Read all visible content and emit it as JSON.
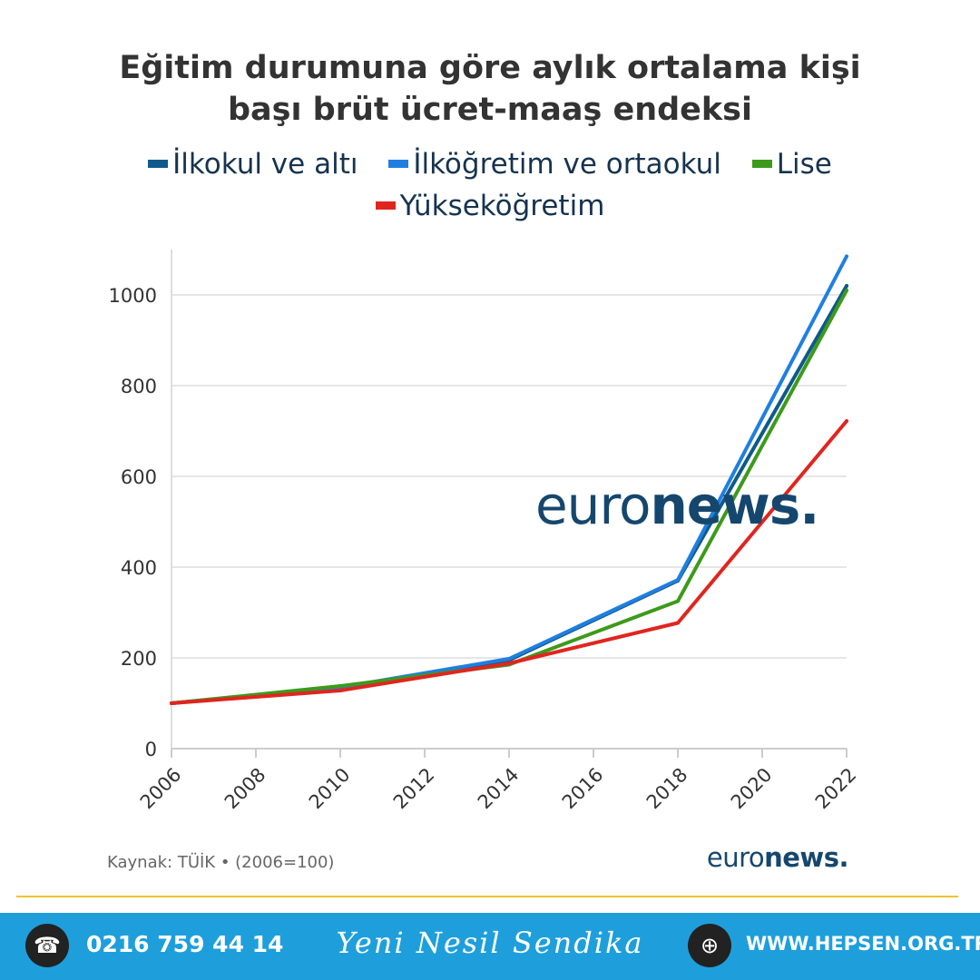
{
  "chart_data": {
    "type": "line",
    "title_line1": "Eğitim durumuna göre aylık ortalama kişi",
    "title_line2": "başı brüt ücret-maaş endeksi",
    "x": [
      2006,
      2010,
      2014,
      2018,
      2022
    ],
    "x_ticks": [
      "2006",
      "2008",
      "2010",
      "2012",
      "2014",
      "2016",
      "2018",
      "2020",
      "2022"
    ],
    "y_ticks": [
      "0",
      "200",
      "400",
      "600",
      "800",
      "1000"
    ],
    "xlim": [
      2006,
      2022
    ],
    "ylim": [
      0,
      1100
    ],
    "grid": true,
    "legend_position": "top",
    "series": [
      {
        "name": "İlkokul ve altı",
        "color": "#0e5a8a",
        "values": [
          100,
          135,
          195,
          370,
          1020
        ]
      },
      {
        "name": "İlköğretim ve ortaokul",
        "color": "#1f7fe0",
        "values": [
          100,
          135,
          198,
          372,
          1085
        ]
      },
      {
        "name": "Lise",
        "color": "#3d9a1b",
        "values": [
          100,
          138,
          185,
          325,
          1010
        ]
      },
      {
        "name": "Yükseköğretim",
        "color": "#e0251f",
        "values": [
          100,
          128,
          188,
          277,
          722
        ]
      }
    ],
    "source": "Kaynak: TÜİK • (2006=100)"
  },
  "brand": {
    "light": "euro",
    "bold": "news."
  },
  "footer": {
    "phone_icon": "phone-icon",
    "phone": "0216 759 44 14",
    "slogan": "Yeni Nesil Sendika",
    "web_icon": "globe-icon",
    "website": "WWW.HEPSEN.ORG.TR"
  }
}
